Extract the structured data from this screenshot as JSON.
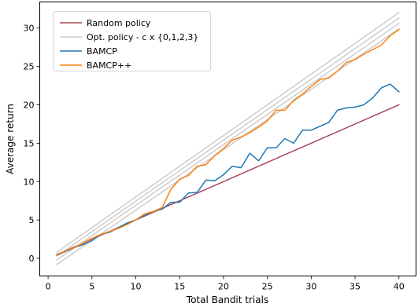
{
  "chart_data": {
    "type": "line",
    "title": "",
    "xlabel": "Total Bandit trials",
    "ylabel": "Average return",
    "xlim": [
      -0.95,
      41.95
    ],
    "ylim": [
      -2.3,
      33.4
    ],
    "xticks": [
      0,
      5,
      10,
      15,
      20,
      25,
      30,
      35,
      40
    ],
    "yticks": [
      0,
      5,
      10,
      15,
      20,
      25,
      30
    ],
    "grid": false,
    "legend_position": "top-left",
    "legend": [
      {
        "label": "Random policy",
        "color": "#a9485a"
      },
      {
        "label": "Opt. policy - c x {0,1,2,3}",
        "color": "#cccccc"
      },
      {
        "label": "BAMCP",
        "color": "#1f77b4"
      },
      {
        "label": "BAMCP++",
        "color": "#ff7f0e"
      }
    ],
    "series": [
      {
        "name": "Random policy",
        "color": "#a9485a",
        "x": [
          1,
          40
        ],
        "y": [
          0.5,
          20.0
        ]
      },
      {
        "name": "Opt. policy - c x {0,1,2,3}",
        "color": "#cccccc",
        "x": [
          1,
          40
        ],
        "y": [
          0.8,
          32.0
        ]
      },
      {
        "name": "",
        "color": "#cccccc",
        "x": [
          1,
          40
        ],
        "y": [
          0.3,
          31.3
        ]
      },
      {
        "name": "",
        "color": "#cccccc",
        "x": [
          1,
          40
        ],
        "y": [
          -0.2,
          30.6
        ]
      },
      {
        "name": "",
        "color": "#cccccc",
        "x": [
          1,
          40
        ],
        "y": [
          -0.8,
          29.9
        ]
      },
      {
        "name": "BAMCP",
        "color": "#1f77b4",
        "x": [
          1,
          2,
          3,
          4,
          5,
          6,
          7,
          8,
          9,
          10,
          11,
          12,
          13,
          14,
          15,
          16,
          17,
          18,
          19,
          20,
          21,
          22,
          23,
          24,
          25,
          26,
          27,
          28,
          29,
          30,
          31,
          32,
          33,
          34,
          35,
          36,
          37,
          38,
          39,
          40
        ],
        "y": [
          0.4,
          0.9,
          1.4,
          1.8,
          2.3,
          3.1,
          3.4,
          4.0,
          4.6,
          5.0,
          5.6,
          6.1,
          6.4,
          7.3,
          7.3,
          8.5,
          8.6,
          10.2,
          10.1,
          10.9,
          12.0,
          11.8,
          13.7,
          12.7,
          14.4,
          14.4,
          15.6,
          15.0,
          16.7,
          16.7,
          17.2,
          17.7,
          19.3,
          19.6,
          19.7,
          20.0,
          20.9,
          22.2,
          22.7,
          21.7
        ]
      },
      {
        "name": "BAMCP++",
        "color": "#ff7f0e",
        "x": [
          1,
          2,
          3,
          4,
          5,
          6,
          7,
          8,
          9,
          10,
          11,
          12,
          13,
          14,
          15,
          16,
          17,
          18,
          19,
          20,
          21,
          22,
          23,
          24,
          25,
          26,
          27,
          28,
          29,
          30,
          31,
          32,
          33,
          34,
          35,
          36,
          37,
          38,
          39,
          40
        ],
        "y": [
          0.4,
          1.0,
          1.4,
          2.0,
          2.6,
          3.1,
          3.5,
          3.9,
          4.4,
          5.0,
          5.8,
          6.1,
          6.6,
          9.0,
          10.3,
          10.8,
          12.0,
          12.2,
          13.4,
          14.3,
          15.4,
          15.8,
          16.4,
          17.1,
          17.9,
          19.3,
          19.3,
          20.6,
          21.4,
          22.4,
          23.3,
          23.5,
          24.4,
          25.5,
          25.9,
          26.6,
          27.2,
          27.8,
          29.0,
          29.8
        ]
      }
    ]
  }
}
